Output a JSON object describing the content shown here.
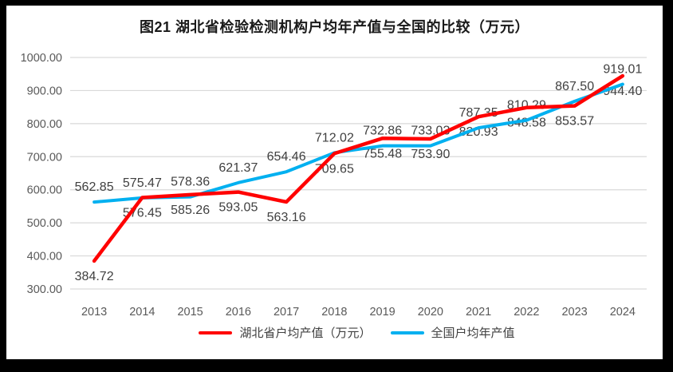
{
  "window": {
    "frame_color": "#000000",
    "background_color": "#FFFFFF"
  },
  "chart_data": {
    "type": "line",
    "title": "图21 湖北省检验检测机构户均年产值与全国的比较（万元）",
    "categories": [
      "2013",
      "2014",
      "2015",
      "2016",
      "2017",
      "2018",
      "2019",
      "2020",
      "2021",
      "2022",
      "2023",
      "2024"
    ],
    "series": [
      {
        "name": "湖北省户均产值（万元）",
        "color": "#FF0000",
        "data_label_position": "below",
        "values": [
          384.72,
          576.45,
          585.26,
          593.05,
          563.16,
          709.65,
          755.48,
          753.9,
          820.93,
          848.58,
          853.57,
          944.4
        ]
      },
      {
        "name": "全国户均年产值",
        "color": "#00B0F0",
        "data_label_position": "above",
        "values": [
          562.85,
          575.47,
          578.36,
          621.37,
          654.46,
          712.02,
          732.86,
          733.03,
          787.35,
          810.29,
          867.5,
          919.01
        ]
      }
    ],
    "ylim": [
      300,
      1000
    ],
    "ytick_step": 100,
    "y_tick_labels": [
      "1000.00",
      "900.00",
      "800.00",
      "700.00",
      "600.00",
      "500.00",
      "400.00",
      "300.00"
    ],
    "grid": true,
    "legend_position": "bottom",
    "data_labels": true,
    "gridline_color": "#D9D9D9",
    "axis_label_color": "#595959",
    "data_label_color": "#404040"
  }
}
